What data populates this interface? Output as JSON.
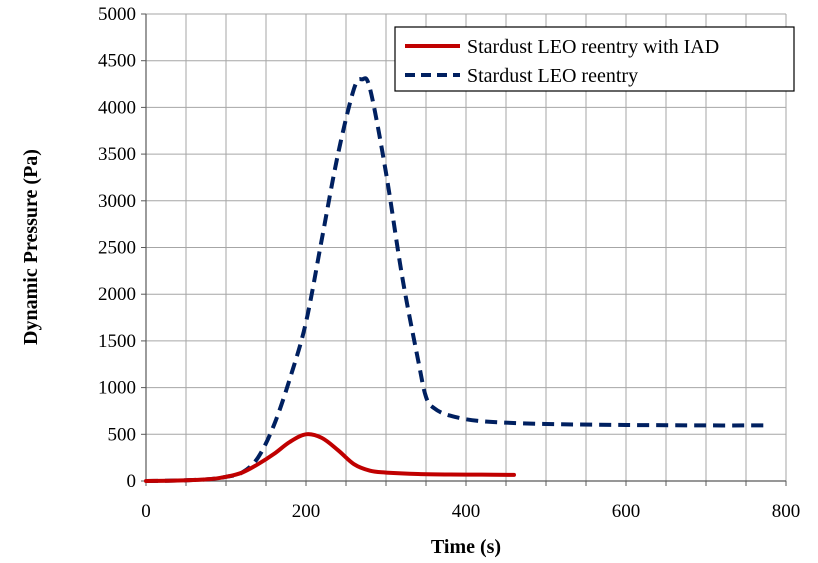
{
  "chart_data": {
    "type": "line",
    "title": "",
    "xlabel": "Time (s)",
    "ylabel": "Dynamic Pressure (Pa)",
    "xlim": [
      0,
      800
    ],
    "ylim": [
      0,
      5000
    ],
    "x_ticks": [
      0,
      200,
      400,
      600,
      800
    ],
    "y_ticks": [
      0,
      500,
      1000,
      1500,
      2000,
      2500,
      3000,
      3500,
      4000,
      4500,
      5000
    ],
    "x_tick_labels": [
      "0",
      "200",
      "400",
      "600",
      "800"
    ],
    "y_tick_labels": [
      "0",
      "500",
      "1000",
      "1500",
      "2000",
      "2500",
      "3000",
      "3500",
      "4000",
      "4500",
      "5000"
    ],
    "grid": true,
    "legend_position": "top-right",
    "series": [
      {
        "name": "Stardust LEO reentry with IAD",
        "color": "#c00000",
        "style": "solid",
        "x": [
          0,
          40,
          80,
          100,
          120,
          140,
          160,
          180,
          200,
          220,
          240,
          260,
          280,
          300,
          340,
          380,
          420,
          460
        ],
        "y": [
          0,
          5,
          20,
          45,
          90,
          180,
          290,
          420,
          500,
          460,
          330,
          180,
          110,
          90,
          75,
          70,
          68,
          65
        ]
      },
      {
        "name": "Stardust LEO reentry",
        "color": "#002060",
        "style": "dashed",
        "x": [
          0,
          40,
          80,
          100,
          120,
          140,
          160,
          180,
          200,
          220,
          240,
          260,
          270,
          280,
          300,
          320,
          340,
          350,
          360,
          380,
          420,
          500,
          600,
          700,
          780
        ],
        "y": [
          0,
          5,
          20,
          45,
          90,
          250,
          600,
          1100,
          1700,
          2600,
          3500,
          4200,
          4300,
          4200,
          3300,
          2200,
          1300,
          900,
          780,
          700,
          640,
          610,
          600,
          595,
          595
        ]
      }
    ]
  }
}
